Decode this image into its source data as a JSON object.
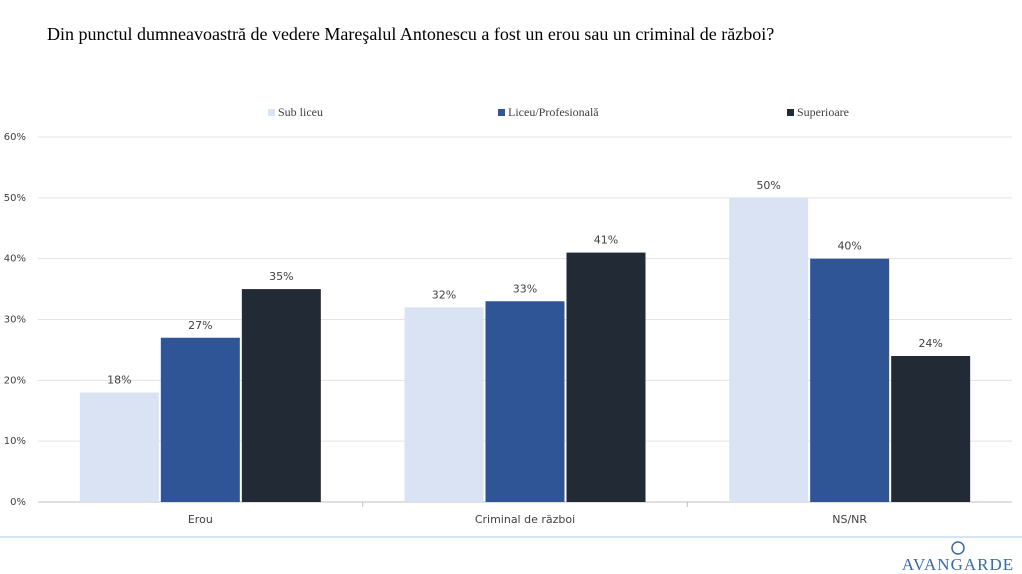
{
  "chart_data": {
    "type": "bar",
    "title": "Din punctul dumneavoastră de vedere Mareşalul Antonescu a fost un erou sau un criminal de război?",
    "categories": [
      "Erou",
      "Criminal de război",
      "NS/NR"
    ],
    "series": [
      {
        "name": "Sub liceu",
        "color": "#dae3f3",
        "values": [
          18,
          32,
          50
        ],
        "value_labels": [
          "18%",
          "32%",
          "50%"
        ]
      },
      {
        "name": "Liceu/Profesională",
        "color": "#2f5597",
        "values": [
          27,
          33,
          40
        ],
        "value_labels": [
          "27%",
          "33%",
          "40%"
        ]
      },
      {
        "name": "Superioare",
        "color": "#222a35",
        "values": [
          35,
          41,
          24
        ],
        "value_labels": [
          "35%",
          "41%",
          "24%"
        ]
      }
    ],
    "ylim": [
      0,
      60
    ],
    "yticks": [
      {
        "value": 0,
        "label": "0%"
      },
      {
        "value": 10,
        "label": "10%"
      },
      {
        "value": 20,
        "label": "20%"
      },
      {
        "value": 30,
        "label": "30%"
      },
      {
        "value": 40,
        "label": "40%"
      },
      {
        "value": 50,
        "label": "50%"
      },
      {
        "value": 60,
        "label": "60%"
      }
    ],
    "grid": true,
    "legend": "top"
  },
  "footer": {
    "logo": "AVANGARDE"
  }
}
